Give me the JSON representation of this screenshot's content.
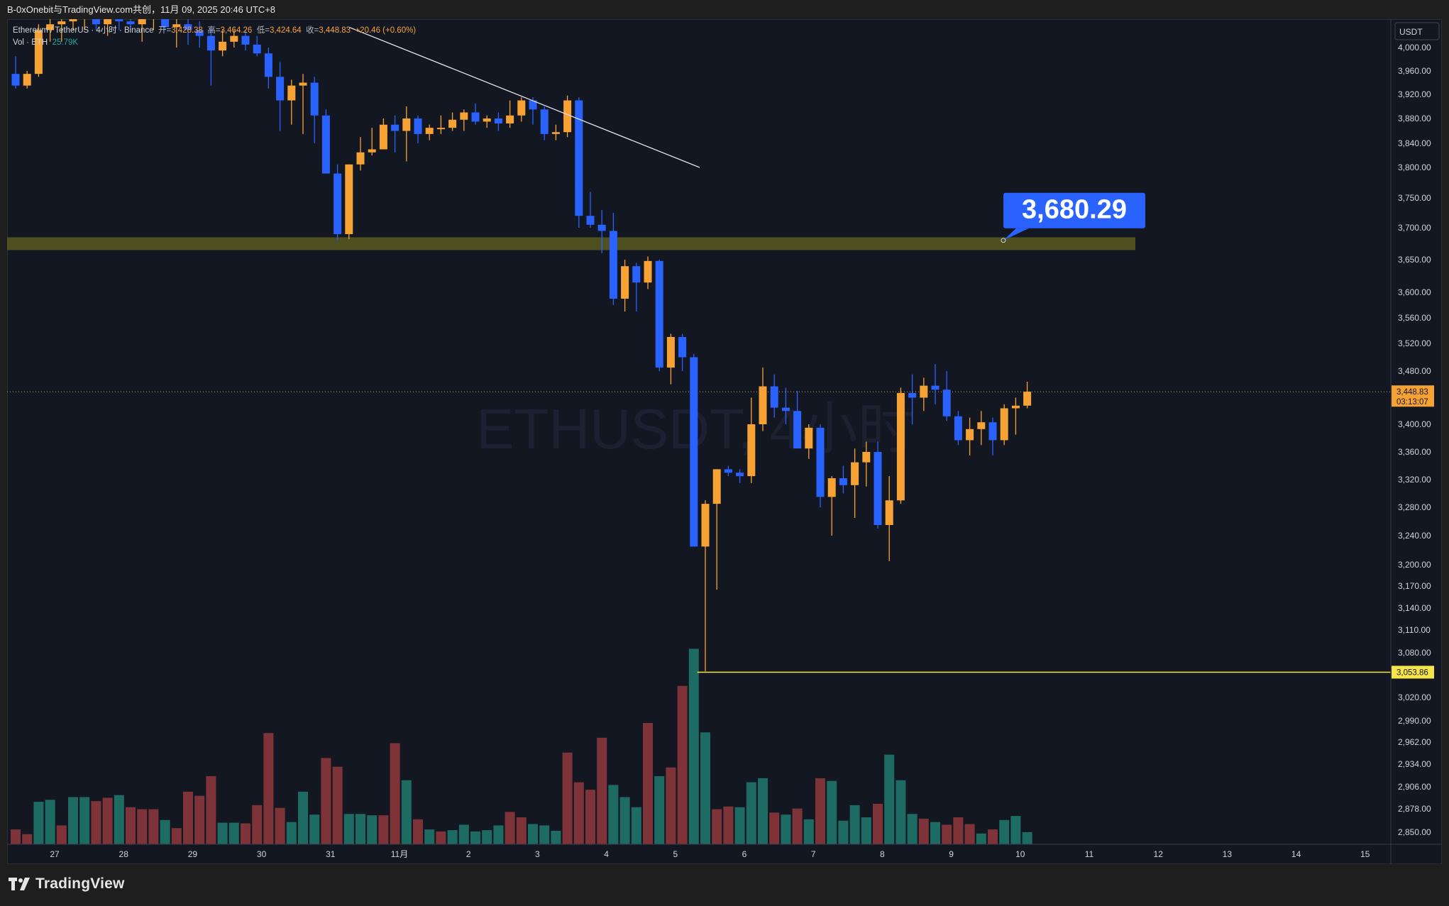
{
  "header": {
    "title": "B-0xOnebit与TradingView.com共创，11月 09, 2025 20:46 UTC+8"
  },
  "legend": {
    "symbol": "Ethereum / TetherUS · 4小时 · Binance",
    "open_label": "开=",
    "open": "3,428.38",
    "high_label": "高=",
    "high": "3,464.26",
    "low_label": "低=",
    "low": "3,424.64",
    "close_label": "收=",
    "close": "3,448.83",
    "change": "+20.46 (+0.60%)",
    "vol_label": "Vol · ETH",
    "vol_value": "25.79K"
  },
  "currency_button": "USDT",
  "watermark": "ETHUSDT, 4小时",
  "branding": "TradingView",
  "colors": {
    "bull": "#f7a234",
    "bear": "#2962ff",
    "vol_up": "#1e6b63",
    "vol_down": "#7e3338",
    "background": "#131722",
    "support_zone": "#5a5a1f",
    "horizontal_line": "#f5e54b",
    "callout": "#2962ff"
  },
  "chart_data": {
    "type": "candlestick",
    "symbol": "ETHUSDT",
    "interval": "4h",
    "y_axis_ticks": [
      "4,000.00",
      "3,960.00",
      "3,920.00",
      "3,880.00",
      "3,840.00",
      "3,800.00",
      "3,750.00",
      "3,700.00",
      "3,650.00",
      "3,600.00",
      "3,560.00",
      "3,520.00",
      "3,480.00",
      "3,400.00",
      "3,360.00",
      "3,320.00",
      "3,280.00",
      "3,240.00",
      "3,200.00",
      "3,170.00",
      "3,140.00",
      "3,110.00",
      "3,080.00",
      "3,020.00",
      "2,990.00",
      "2,962.00",
      "2,934.00",
      "2,906.00",
      "2,878.00",
      "2,850.00"
    ],
    "x_axis_labels": [
      "27",
      "28",
      "29",
      "30",
      "31",
      "11月",
      "2",
      "3",
      "4",
      "5",
      "6",
      "7",
      "8",
      "9",
      "10",
      "11",
      "12",
      "13",
      "14",
      "15"
    ],
    "current_price": "3,448.83",
    "countdown": "03:13:07",
    "level_line_price": "3,053.86",
    "callout": {
      "text": "3,680.29",
      "price": 3680.29
    },
    "support_zone": [
      3665,
      3685
    ],
    "trendline": [
      {
        "bar": 29,
        "price": 4035
      },
      {
        "bar": 59.5,
        "price": 3800
      }
    ],
    "candles": [
      {
        "o": 3955,
        "h": 3985,
        "l": 3930,
        "c": 3935
      },
      {
        "o": 3935,
        "h": 3960,
        "l": 3930,
        "c": 3955
      },
      {
        "o": 3955,
        "h": 4040,
        "l": 3950,
        "c": 4030
      },
      {
        "o": 4030,
        "h": 4050,
        "l": 4010,
        "c": 4040
      },
      {
        "o": 4040,
        "h": 4055,
        "l": 4010,
        "c": 4045
      },
      {
        "o": 4045,
        "h": 4060,
        "l": 4030,
        "c": 4050
      },
      {
        "o": 4050,
        "h": 4065,
        "l": 4030,
        "c": 4055
      },
      {
        "o": 4055,
        "h": 4070,
        "l": 4030,
        "c": 4040
      },
      {
        "o": 4040,
        "h": 4060,
        "l": 4020,
        "c": 4050
      },
      {
        "o": 4050,
        "h": 4060,
        "l": 4030,
        "c": 4045
      },
      {
        "o": 4045,
        "h": 4060,
        "l": 4030,
        "c": 4040
      },
      {
        "o": 4040,
        "h": 4060,
        "l": 4010,
        "c": 4050
      },
      {
        "o": 4050,
        "h": 4080,
        "l": 4030,
        "c": 4060
      },
      {
        "o": 4060,
        "h": 4075,
        "l": 4030,
        "c": 4035
      },
      {
        "o": 4035,
        "h": 4050,
        "l": 4000,
        "c": 4040
      },
      {
        "o": 4040,
        "h": 4060,
        "l": 4005,
        "c": 4030
      },
      {
        "o": 4030,
        "h": 4045,
        "l": 4000,
        "c": 4020
      },
      {
        "o": 4020,
        "h": 4035,
        "l": 3935,
        "c": 3995
      },
      {
        "o": 3995,
        "h": 4030,
        "l": 3985,
        "c": 4010
      },
      {
        "o": 4010,
        "h": 4030,
        "l": 4000,
        "c": 4020
      },
      {
        "o": 4020,
        "h": 4030,
        "l": 3995,
        "c": 4005
      },
      {
        "o": 4005,
        "h": 4020,
        "l": 3985,
        "c": 3990
      },
      {
        "o": 3990,
        "h": 4000,
        "l": 3930,
        "c": 3950
      },
      {
        "o": 3950,
        "h": 3975,
        "l": 3860,
        "c": 3910
      },
      {
        "o": 3910,
        "h": 3945,
        "l": 3870,
        "c": 3935
      },
      {
        "o": 3935,
        "h": 3955,
        "l": 3855,
        "c": 3940
      },
      {
        "o": 3940,
        "h": 3950,
        "l": 3840,
        "c": 3885
      },
      {
        "o": 3885,
        "h": 3895,
        "l": 3790,
        "c": 3790
      },
      {
        "o": 3790,
        "h": 3805,
        "l": 3680,
        "c": 3690
      },
      {
        "o": 3690,
        "h": 3805,
        "l": 3682,
        "c": 3805
      },
      {
        "o": 3805,
        "h": 3850,
        "l": 3795,
        "c": 3825
      },
      {
        "o": 3825,
        "h": 3865,
        "l": 3820,
        "c": 3830
      },
      {
        "o": 3830,
        "h": 3880,
        "l": 3830,
        "c": 3870
      },
      {
        "o": 3870,
        "h": 3885,
        "l": 3825,
        "c": 3860
      },
      {
        "o": 3860,
        "h": 3900,
        "l": 3810,
        "c": 3880
      },
      {
        "o": 3880,
        "h": 3885,
        "l": 3840,
        "c": 3855
      },
      {
        "o": 3855,
        "h": 3870,
        "l": 3845,
        "c": 3865
      },
      {
        "o": 3865,
        "h": 3885,
        "l": 3855,
        "c": 3865
      },
      {
        "o": 3865,
        "h": 3890,
        "l": 3860,
        "c": 3878
      },
      {
        "o": 3878,
        "h": 3895,
        "l": 3860,
        "c": 3890
      },
      {
        "o": 3890,
        "h": 3905,
        "l": 3870,
        "c": 3875
      },
      {
        "o": 3875,
        "h": 3885,
        "l": 3865,
        "c": 3880
      },
      {
        "o": 3880,
        "h": 3890,
        "l": 3860,
        "c": 3872
      },
      {
        "o": 3872,
        "h": 3910,
        "l": 3865,
        "c": 3885
      },
      {
        "o": 3885,
        "h": 3915,
        "l": 3875,
        "c": 3910
      },
      {
        "o": 3910,
        "h": 3915,
        "l": 3870,
        "c": 3895
      },
      {
        "o": 3895,
        "h": 3900,
        "l": 3845,
        "c": 3855
      },
      {
        "o": 3855,
        "h": 3870,
        "l": 3845,
        "c": 3858
      },
      {
        "o": 3858,
        "h": 3918,
        "l": 3850,
        "c": 3910
      },
      {
        "o": 3910,
        "h": 3915,
        "l": 3700,
        "c": 3720
      },
      {
        "o": 3720,
        "h": 3760,
        "l": 3700,
        "c": 3705
      },
      {
        "o": 3705,
        "h": 3730,
        "l": 3660,
        "c": 3695
      },
      {
        "o": 3695,
        "h": 3725,
        "l": 3580,
        "c": 3590
      },
      {
        "o": 3590,
        "h": 3650,
        "l": 3570,
        "c": 3640
      },
      {
        "o": 3640,
        "h": 3645,
        "l": 3570,
        "c": 3615
      },
      {
        "o": 3615,
        "h": 3655,
        "l": 3605,
        "c": 3648
      },
      {
        "o": 3648,
        "h": 3650,
        "l": 3480,
        "c": 3485
      },
      {
        "o": 3485,
        "h": 3535,
        "l": 3460,
        "c": 3530
      },
      {
        "o": 3530,
        "h": 3535,
        "l": 3480,
        "c": 3500
      },
      {
        "o": 3500,
        "h": 3505,
        "l": 3225,
        "c": 3225
      },
      {
        "o": 3225,
        "h": 3290,
        "l": 3055,
        "c": 3285
      },
      {
        "o": 3285,
        "h": 3335,
        "l": 3165,
        "c": 3335
      },
      {
        "o": 3335,
        "h": 3340,
        "l": 3325,
        "c": 3330
      },
      {
        "o": 3330,
        "h": 3335,
        "l": 3315,
        "c": 3325
      },
      {
        "o": 3325,
        "h": 3440,
        "l": 3315,
        "c": 3400
      },
      {
        "o": 3400,
        "h": 3485,
        "l": 3390,
        "c": 3457
      },
      {
        "o": 3457,
        "h": 3475,
        "l": 3410,
        "c": 3425
      },
      {
        "o": 3425,
        "h": 3455,
        "l": 3400,
        "c": 3420
      },
      {
        "o": 3420,
        "h": 3450,
        "l": 3370,
        "c": 3365
      },
      {
        "o": 3365,
        "h": 3400,
        "l": 3350,
        "c": 3395
      },
      {
        "o": 3395,
        "h": 3400,
        "l": 3280,
        "c": 3295
      },
      {
        "o": 3295,
        "h": 3325,
        "l": 3240,
        "c": 3322
      },
      {
        "o": 3322,
        "h": 3340,
        "l": 3300,
        "c": 3312
      },
      {
        "o": 3312,
        "h": 3365,
        "l": 3265,
        "c": 3345
      },
      {
        "o": 3345,
        "h": 3375,
        "l": 3310,
        "c": 3360
      },
      {
        "o": 3360,
        "h": 3375,
        "l": 3250,
        "c": 3255
      },
      {
        "o": 3255,
        "h": 3325,
        "l": 3205,
        "c": 3290
      },
      {
        "o": 3290,
        "h": 3455,
        "l": 3285,
        "c": 3447
      },
      {
        "o": 3447,
        "h": 3475,
        "l": 3400,
        "c": 3440
      },
      {
        "o": 3440,
        "h": 3470,
        "l": 3420,
        "c": 3458
      },
      {
        "o": 3458,
        "h": 3490,
        "l": 3430,
        "c": 3452
      },
      {
        "o": 3452,
        "h": 3480,
        "l": 3405,
        "c": 3412
      },
      {
        "o": 3412,
        "h": 3420,
        "l": 3370,
        "c": 3377
      },
      {
        "o": 3377,
        "h": 3410,
        "l": 3355,
        "c": 3393
      },
      {
        "o": 3393,
        "h": 3420,
        "l": 3370,
        "c": 3403
      },
      {
        "o": 3403,
        "h": 3410,
        "l": 3355,
        "c": 3377
      },
      {
        "o": 3377,
        "h": 3430,
        "l": 3370,
        "c": 3424
      },
      {
        "o": 3424,
        "h": 3440,
        "l": 3385,
        "c": 3428
      },
      {
        "o": 3428,
        "h": 3464,
        "l": 3424,
        "c": 3449
      }
    ],
    "volume": [
      {
        "v": 22,
        "up": false
      },
      {
        "v": 15,
        "up": false
      },
      {
        "v": 63,
        "up": true
      },
      {
        "v": 66,
        "up": true
      },
      {
        "v": 28,
        "up": false
      },
      {
        "v": 70,
        "up": true
      },
      {
        "v": 70,
        "up": true
      },
      {
        "v": 64,
        "up": false
      },
      {
        "v": 69,
        "up": false
      },
      {
        "v": 73,
        "up": true
      },
      {
        "v": 55,
        "up": false
      },
      {
        "v": 52,
        "up": false
      },
      {
        "v": 52,
        "up": false
      },
      {
        "v": 36,
        "up": true
      },
      {
        "v": 24,
        "up": false
      },
      {
        "v": 78,
        "up": false
      },
      {
        "v": 72,
        "up": false
      },
      {
        "v": 101,
        "up": false
      },
      {
        "v": 32,
        "up": true
      },
      {
        "v": 32,
        "up": true
      },
      {
        "v": 31,
        "up": false
      },
      {
        "v": 58,
        "up": false
      },
      {
        "v": 165,
        "up": false
      },
      {
        "v": 54,
        "up": false
      },
      {
        "v": 33,
        "up": true
      },
      {
        "v": 78,
        "up": true
      },
      {
        "v": 44,
        "up": true
      },
      {
        "v": 128,
        "up": false
      },
      {
        "v": 115,
        "up": false
      },
      {
        "v": 45,
        "up": true
      },
      {
        "v": 45,
        "up": true
      },
      {
        "v": 43,
        "up": true
      },
      {
        "v": 43,
        "up": false
      },
      {
        "v": 150,
        "up": false
      },
      {
        "v": 95,
        "up": true
      },
      {
        "v": 37,
        "up": false
      },
      {
        "v": 22,
        "up": true
      },
      {
        "v": 19,
        "up": false
      },
      {
        "v": 21,
        "up": true
      },
      {
        "v": 29,
        "up": true
      },
      {
        "v": 19,
        "up": true
      },
      {
        "v": 21,
        "up": true
      },
      {
        "v": 28,
        "up": true
      },
      {
        "v": 48,
        "up": false
      },
      {
        "v": 40,
        "up": false
      },
      {
        "v": 30,
        "up": true
      },
      {
        "v": 28,
        "up": true
      },
      {
        "v": 20,
        "up": true
      },
      {
        "v": 136,
        "up": false
      },
      {
        "v": 92,
        "up": false
      },
      {
        "v": 81,
        "up": false
      },
      {
        "v": 158,
        "up": false
      },
      {
        "v": 88,
        "up": true
      },
      {
        "v": 70,
        "up": true
      },
      {
        "v": 55,
        "up": true
      },
      {
        "v": 180,
        "up": false
      },
      {
        "v": 101,
        "up": true
      },
      {
        "v": 114,
        "up": false
      },
      {
        "v": 235,
        "up": false
      },
      {
        "v": 290,
        "up": true
      },
      {
        "v": 166,
        "up": true
      },
      {
        "v": 52,
        "up": false
      },
      {
        "v": 56,
        "up": false
      },
      {
        "v": 55,
        "up": true
      },
      {
        "v": 92,
        "up": true
      },
      {
        "v": 98,
        "up": true
      },
      {
        "v": 47,
        "up": false
      },
      {
        "v": 44,
        "up": true
      },
      {
        "v": 53,
        "up": false
      },
      {
        "v": 37,
        "up": true
      },
      {
        "v": 98,
        "up": false
      },
      {
        "v": 94,
        "up": true
      },
      {
        "v": 35,
        "up": true
      },
      {
        "v": 58,
        "up": true
      },
      {
        "v": 40,
        "up": true
      },
      {
        "v": 60,
        "up": false
      },
      {
        "v": 133,
        "up": true
      },
      {
        "v": 95,
        "up": true
      },
      {
        "v": 45,
        "up": true
      },
      {
        "v": 38,
        "up": false
      },
      {
        "v": 33,
        "up": true
      },
      {
        "v": 29,
        "up": false
      },
      {
        "v": 40,
        "up": false
      },
      {
        "v": 30,
        "up": false
      },
      {
        "v": 16,
        "up": true
      },
      {
        "v": 22,
        "up": false
      },
      {
        "v": 36,
        "up": true
      },
      {
        "v": 42,
        "up": true
      },
      {
        "v": 18,
        "up": true
      }
    ]
  }
}
